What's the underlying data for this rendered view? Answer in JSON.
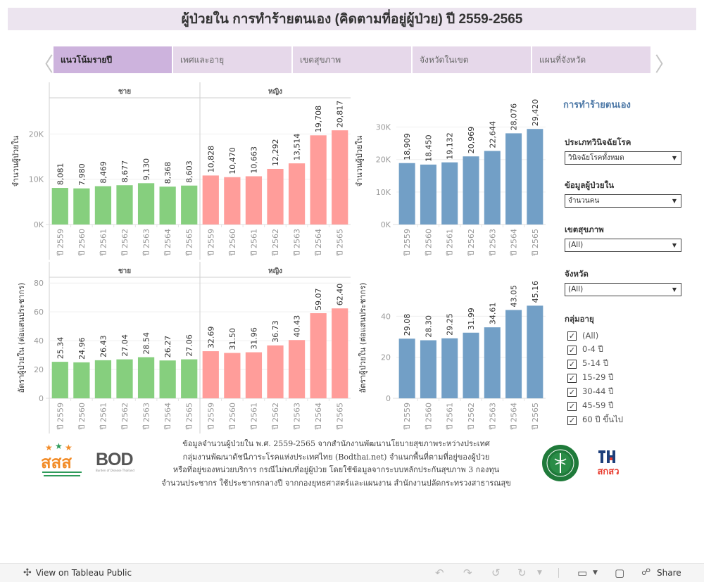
{
  "title": "ผู้ป่วยใน การทำร้ายตนเอง (คิดตามที่อยู่ผู้ป่วย) ปี 2559-2565",
  "nav": {
    "prev_icon": "chevron-left-icon",
    "next_icon": "chevron-right-icon",
    "tabs": [
      {
        "label": "แนวโน้มรายปี",
        "active": true
      },
      {
        "label": "เพศและอายุ",
        "active": false
      },
      {
        "label": "เขตสุขภาพ",
        "active": false
      },
      {
        "label": "จังหวัดในเขต",
        "active": false
      },
      {
        "label": "แผนที่จังหวัด",
        "active": false
      }
    ]
  },
  "colors": {
    "male": "#86cf7e",
    "female": "#ff9d9a",
    "total": "#729fc6",
    "accent": "#4e79a7",
    "tab_active": "#cdb3dd",
    "tab_inactive": "#e6d8ea",
    "title_bg": "#ece4ef"
  },
  "chart_data": [
    {
      "type": "bar",
      "id": "count-by-sex",
      "title": "",
      "ylabel": "จำนวนผู้ป่วยใน",
      "ylim": [
        0,
        28000
      ],
      "yticks": [
        0,
        10000,
        20000
      ],
      "ytick_labels": [
        "0K",
        "10K",
        "20K"
      ],
      "grid": true,
      "categories": [
        "ปี 2559",
        "ปี 2560",
        "ปี 2561",
        "ปี 2562",
        "ปี 2563",
        "ปี 2564",
        "ปี 2565"
      ],
      "panels": [
        {
          "name": "ชาย",
          "color_key": "male",
          "values": [
            8081,
            7980,
            8469,
            8677,
            9130,
            8368,
            8603
          ],
          "labels": [
            "8,081",
            "7,980",
            "8,469",
            "8,677",
            "9,130",
            "8,368",
            "8,603"
          ]
        },
        {
          "name": "หญิง",
          "color_key": "female",
          "values": [
            10828,
            10470,
            10663,
            12292,
            13514,
            19708,
            20817
          ],
          "labels": [
            "10,828",
            "10,470",
            "10,663",
            "12,292",
            "13,514",
            "19,708",
            "20,817"
          ]
        }
      ]
    },
    {
      "type": "bar",
      "id": "count-total",
      "title": "",
      "ylabel": "จำนวนผู้ป่วยใน",
      "ylim": [
        0,
        39000
      ],
      "yticks": [
        0,
        10000,
        20000,
        30000
      ],
      "ytick_labels": [
        "0K",
        "10K",
        "20K",
        "30K"
      ],
      "grid": true,
      "categories": [
        "ปี 2559",
        "ปี 2560",
        "ปี 2561",
        "ปี 2562",
        "ปี 2563",
        "ปี 2564",
        "ปี 2565"
      ],
      "panels": [
        {
          "name": "",
          "color_key": "total",
          "values": [
            18909,
            18450,
            19132,
            20969,
            22644,
            28076,
            29420
          ],
          "labels": [
            "18,909",
            "18,450",
            "19,132",
            "20,969",
            "22,644",
            "28,076",
            "29,420"
          ]
        }
      ]
    },
    {
      "type": "bar",
      "id": "rate-by-sex",
      "title": "",
      "ylabel": "อัตราผู้ป่วยใน (ต่อแสนประชากร)",
      "ylim": [
        0,
        84
      ],
      "yticks": [
        0,
        20,
        40,
        60,
        80
      ],
      "ytick_labels": [
        "0",
        "20",
        "40",
        "60",
        "80"
      ],
      "grid": true,
      "categories": [
        "ปี 2559",
        "ปี 2560",
        "ปี 2561",
        "ปี 2562",
        "ปี 2563",
        "ปี 2564",
        "ปี 2565"
      ],
      "panels": [
        {
          "name": "ชาย",
          "color_key": "male",
          "values": [
            25.34,
            24.96,
            26.43,
            27.04,
            28.54,
            26.27,
            27.06
          ],
          "labels": [
            "25.34",
            "24.96",
            "26.43",
            "27.04",
            "28.54",
            "26.27",
            "27.06"
          ]
        },
        {
          "name": "หญิง",
          "color_key": "female",
          "values": [
            32.69,
            31.5,
            31.96,
            36.73,
            40.43,
            59.07,
            62.4
          ],
          "labels": [
            "32.69",
            "31.50",
            "31.96",
            "36.73",
            "40.43",
            "59.07",
            "62.40"
          ]
        }
      ]
    },
    {
      "type": "bar",
      "id": "rate-total",
      "title": "",
      "ylabel": "อัตราผู้ป่วยใน (ต่อแสนประชากร)",
      "ylim": [
        0,
        59
      ],
      "yticks": [
        0,
        20,
        40
      ],
      "ytick_labels": [
        "0",
        "20",
        "40"
      ],
      "grid": true,
      "categories": [
        "ปี 2559",
        "ปี 2560",
        "ปี 2561",
        "ปี 2562",
        "ปี 2563",
        "ปี 2564",
        "ปี 2565"
      ],
      "panels": [
        {
          "name": "",
          "color_key": "total",
          "values": [
            29.08,
            28.3,
            29.25,
            31.99,
            34.61,
            43.05,
            45.16
          ],
          "labels": [
            "29.08",
            "28.30",
            "29.25",
            "31.99",
            "34.61",
            "43.05",
            "45.16"
          ]
        }
      ]
    }
  ],
  "sidebar": {
    "title": "การทำร้ายตนเอง",
    "filters": [
      {
        "label": "ประเภทวินิจฉัยโรค",
        "value": "วินิจฉัยโรคทั้งหมด"
      },
      {
        "label": "ข้อมูลผู้ป่วยใน",
        "value": "จำนวนคน"
      },
      {
        "label": "เขตสุขภาพ",
        "value": "(All)"
      },
      {
        "label": "จังหวัด",
        "value": "(All)"
      }
    ],
    "age_group": {
      "label": "กลุ่มอายุ",
      "items": [
        {
          "label": "(All)",
          "checked": true
        },
        {
          "label": "0-4 ปี",
          "checked": true
        },
        {
          "label": "5-14 ปี",
          "checked": true
        },
        {
          "label": "15-29 ปี",
          "checked": true
        },
        {
          "label": "30-44 ปี",
          "checked": true
        },
        {
          "label": "45-59 ปี",
          "checked": true
        },
        {
          "label": "60 ปี ขึ้นไป",
          "checked": true
        }
      ]
    }
  },
  "footer": {
    "lines": [
      "ข้อมูลจำนวนผู้ป่วยใน พ.ศ. 2559-2565 จากสำนักงานพัฒนานโยบายสุขภาพระหว่างประเทศ",
      "กลุ่มงานพัฒนาดัชนีภาระโรคแห่งประเทศไทย (Bodthai.net) จำแนกพื้นที่ตามที่อยู่ของผู้ป่วย",
      "หรือที่อยู่ของหน่วยบริการ กรณีไม่พบที่อยู่ผู้ป่วย โดยใช้ข้อมูลจากระบบหลักประกันสุขภาพ 3 กองทุน",
      "จำนวนประชากร ใช้ประชากรกลางปี จากกองยุทธศาสตร์และแผนงาน สำนักงานปลัดกระทรวงสาธารณสุข"
    ],
    "logos": {
      "thaihealth": "สสส",
      "bod": "BOD",
      "bod_sub": "Burden of Disease Thailand",
      "moph": "moph-logo",
      "hiso": "สกสว"
    }
  },
  "toolbar": {
    "view_label": "View on Tableau Public",
    "share_label": "Share"
  }
}
